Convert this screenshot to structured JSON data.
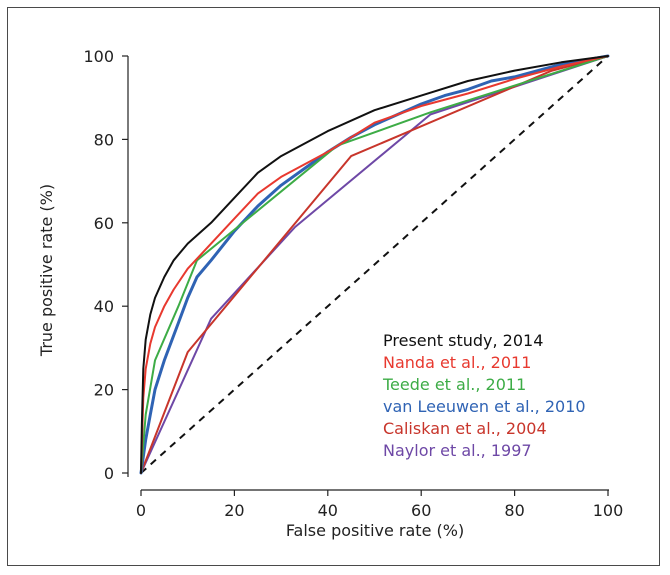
{
  "chart_data": {
    "type": "line",
    "xlabel": "False positive rate (%)",
    "ylabel": "True positive rate (%)",
    "xlim": [
      0,
      100
    ],
    "ylim": [
      0,
      100
    ],
    "x_ticks": [
      "0",
      "20",
      "40",
      "60",
      "80",
      "100"
    ],
    "y_ticks": [
      "0",
      "20",
      "40",
      "60",
      "80",
      "100"
    ],
    "grid": false,
    "legend_position": "bottom-right",
    "reference_line": {
      "style": "dashed",
      "color": "#111111",
      "x": [
        0,
        100
      ],
      "y": [
        0,
        100
      ]
    },
    "series": [
      {
        "name": "Present study, 2014",
        "color": "#111111",
        "x": [
          0,
          0.2,
          0.5,
          1,
          2,
          3,
          5,
          7,
          10,
          15,
          20,
          25,
          30,
          40,
          50,
          60,
          70,
          80,
          90,
          100
        ],
        "y": [
          0,
          12,
          25,
          32,
          38,
          42,
          47,
          51,
          55,
          60,
          66,
          72,
          76,
          82,
          87,
          90.5,
          94,
          96.5,
          98.5,
          100
        ]
      },
      {
        "name": "Nanda et al., 2011",
        "color": "#e8392f",
        "x": [
          0,
          0.5,
          1,
          2,
          3,
          5,
          7,
          10,
          15,
          20,
          25,
          30,
          40,
          50,
          60,
          70,
          80,
          90,
          100
        ],
        "y": [
          0,
          18,
          25,
          31,
          35,
          40,
          44,
          49,
          55,
          61,
          67,
          71,
          77,
          84,
          88,
          91,
          94.5,
          97.5,
          100
        ]
      },
      {
        "name": "Teede et al., 2011",
        "color": "#3dac46",
        "x": [
          0,
          1,
          3,
          8,
          12,
          42,
          62,
          100
        ],
        "y": [
          0,
          14,
          27,
          40,
          51,
          78.5,
          86.5,
          100
        ]
      },
      {
        "name": "van Leeuwen et al., 2010",
        "color": "#2f63b4",
        "x": [
          0,
          1,
          2,
          3,
          5,
          8,
          10,
          12,
          15,
          20,
          25,
          30,
          35,
          40,
          45,
          50,
          55,
          60,
          65,
          70,
          75,
          80,
          85,
          90,
          95,
          100
        ],
        "y": [
          0,
          8,
          14,
          20,
          27,
          36,
          42,
          47,
          51,
          58,
          64,
          69,
          73,
          77,
          80.5,
          83.5,
          86,
          88.5,
          90.5,
          92,
          94,
          95,
          96.5,
          98,
          99,
          100
        ]
      },
      {
        "name": "Caliskan et al., 2004",
        "color": "#c8352b",
        "x": [
          0,
          10,
          45,
          88,
          100
        ],
        "y": [
          0,
          29,
          76,
          96.5,
          100
        ]
      },
      {
        "name": "Naylor et al., 1997",
        "color": "#6e48a6",
        "x": [
          0,
          15,
          33,
          62,
          100
        ],
        "y": [
          0,
          37,
          59,
          86,
          100
        ]
      }
    ]
  }
}
